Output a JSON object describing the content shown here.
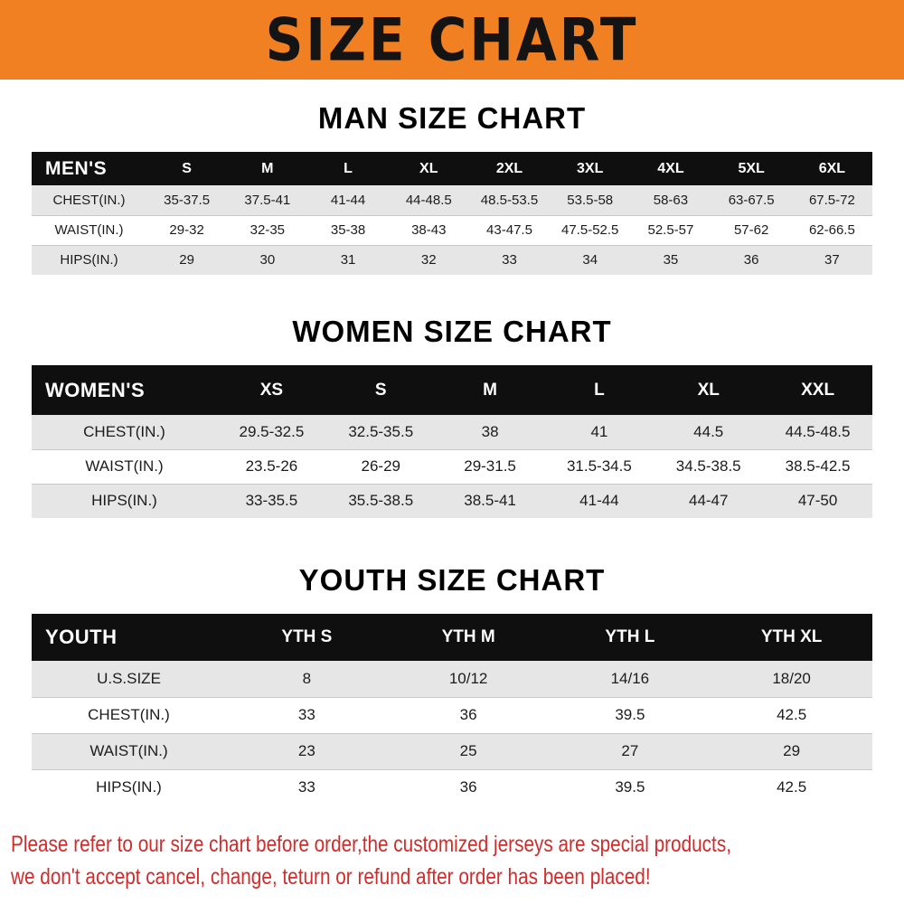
{
  "banner": {
    "title": "SIZE CHART",
    "bg_color": "#f08021"
  },
  "chart_data": [
    {
      "type": "table",
      "title": "MAN SIZE CHART",
      "header": [
        "MEN'S",
        "S",
        "M",
        "L",
        "XL",
        "2XL",
        "3XL",
        "4XL",
        "5XL",
        "6XL"
      ],
      "rows": [
        [
          "CHEST(IN.)",
          "35-37.5",
          "37.5-41",
          "41-44",
          "44-48.5",
          "48.5-53.5",
          "53.5-58",
          "58-63",
          "63-67.5",
          "67.5-72"
        ],
        [
          "WAIST(IN.)",
          "29-32",
          "32-35",
          "35-38",
          "38-43",
          "43-47.5",
          "47.5-52.5",
          "52.5-57",
          "57-62",
          "62-66.5"
        ],
        [
          "HIPS(IN.)",
          "29",
          "30",
          "31",
          "32",
          "33",
          "34",
          "35",
          "36",
          "37"
        ]
      ]
    },
    {
      "type": "table",
      "title": "WOMEN SIZE CHART",
      "header": [
        "WOMEN'S",
        "XS",
        "S",
        "M",
        "L",
        "XL",
        "XXL"
      ],
      "rows": [
        [
          "CHEST(IN.)",
          "29.5-32.5",
          "32.5-35.5",
          "38",
          "41",
          "44.5",
          "44.5-48.5"
        ],
        [
          "WAIST(IN.)",
          "23.5-26",
          "26-29",
          "29-31.5",
          "31.5-34.5",
          "34.5-38.5",
          "38.5-42.5"
        ],
        [
          "HIPS(IN.)",
          "33-35.5",
          "35.5-38.5",
          "38.5-41",
          "41-44",
          "44-47",
          "47-50"
        ]
      ]
    },
    {
      "type": "table",
      "title": "YOUTH SIZE CHART",
      "header": [
        "YOUTH",
        "YTH S",
        "YTH M",
        "YTH L",
        "YTH XL"
      ],
      "rows": [
        [
          "U.S.SIZE",
          "8",
          "10/12",
          "14/16",
          "18/20"
        ],
        [
          "CHEST(IN.)",
          "33",
          "36",
          "39.5",
          "42.5"
        ],
        [
          "WAIST(IN.)",
          "23",
          "25",
          "27",
          "29"
        ],
        [
          "HIPS(IN.)",
          "33",
          "36",
          "39.5",
          "42.5"
        ]
      ]
    }
  ],
  "footer": {
    "lines": [
      "Please refer to our size chart before order,the customized jerseys are special products,",
      "we don't accept cancel, change, teturn or refund after order has been placed!"
    ],
    "text_color": "#d02c2c"
  }
}
